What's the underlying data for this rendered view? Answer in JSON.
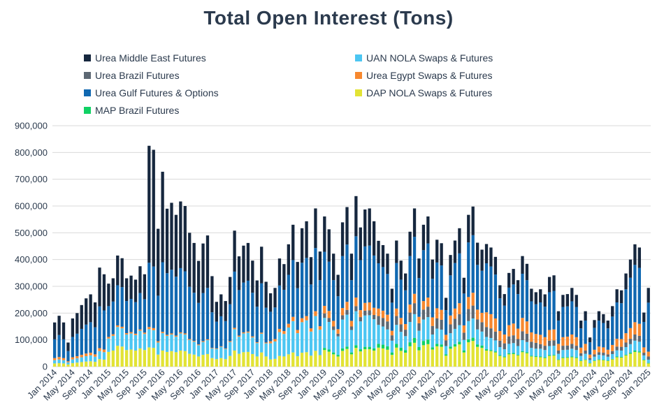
{
  "header": {
    "title": "Total Open Interest (Tons)"
  },
  "colors": {
    "background": "#ffffff",
    "text": "#2b3a4d",
    "grid": "#d9d9d9",
    "urea_middle_east": "#16273e",
    "uan_nola": "#4cc6f2",
    "urea_brazil": "#5d6873",
    "urea_egypt": "#f7882f",
    "urea_gulf": "#1068b1",
    "dap_nola": "#e2e335",
    "map_brazil": "#10d164"
  },
  "legend": {
    "items": [
      {
        "label": "Urea Middle East Futures",
        "color": "#16273e"
      },
      {
        "label": "UAN NOLA Swaps & Futures",
        "color": "#4cc6f2"
      },
      {
        "label": "Urea Brazil Futures",
        "color": "#5d6873"
      },
      {
        "label": "Urea Egypt Swaps & Futures",
        "color": "#f7882f"
      },
      {
        "label": "Urea Gulf Futures & Options",
        "color": "#1068b1"
      },
      {
        "label": "DAP NOLA Swaps & Futures",
        "color": "#e2e335"
      },
      {
        "label": "MAP Brazil Futures",
        "color": "#10d164"
      }
    ]
  },
  "chart_data": {
    "type": "bar",
    "variant": "stacked",
    "title": "Total Open Interest (Tons)",
    "unit": "tons",
    "values_scale": 1000,
    "x_span": "Jan 2014 - Jan 2025",
    "n_bars": 133,
    "x_tick_every": 4,
    "x_tick_labels": [
      "Jan 2014",
      "May 2014",
      "Sep 2014",
      "Jan 2015",
      "May 2015",
      "Sep 2015",
      "Jan 2016",
      "May 2016",
      "Sep 2016",
      "Jan 2017",
      "May 2017",
      "Sep 2017",
      "Jan 2018",
      "May 2018",
      "Sep 2018",
      "Jan 2019",
      "May 2019",
      "Sep 2019",
      "Jan 2020",
      "May 2020",
      "Sep 2020",
      "Jan 2021",
      "May 2021",
      "Sep 2021",
      "Jan 2022",
      "May 2022",
      "Sep 2022",
      "Jan 2023",
      "May 2023",
      "Sep 2023",
      "Jan 2024",
      "May 2024",
      "Sep 2024",
      "Jan 2025"
    ],
    "y_ticks": [
      "0",
      "100,000",
      "200,000",
      "300,000",
      "400,000",
      "500,000",
      "600,000",
      "700,000",
      "800,000",
      "900,000"
    ],
    "ylim": [
      0,
      900000
    ],
    "grid": true,
    "legend_position": "top",
    "series": [
      {
        "name": "DAP NOLA Swaps & Futures",
        "color": "#e2e335",
        "values": [
          12,
          13,
          12,
          8,
          13,
          15,
          17,
          19,
          20,
          18,
          28,
          26,
          55,
          60,
          78,
          75,
          62,
          64,
          60,
          68,
          62,
          72,
          70,
          45,
          60,
          55,
          58,
          54,
          60,
          58,
          48,
          45,
          38,
          44,
          47,
          32,
          28,
          32,
          28,
          40,
          60,
          48,
          54,
          55,
          47,
          38,
          53,
          38,
          27,
          29,
          40,
          38,
          46,
          53,
          39,
          52,
          54,
          41,
          59,
          43,
          62,
          56,
          46,
          38,
          59,
          66,
          46,
          70,
          57,
          65,
          65,
          60,
          71,
          68,
          63,
          44,
          71,
          59,
          52,
          76,
          89,
          61,
          80,
          84,
          64,
          76,
          74,
          41,
          67,
          75,
          83,
          53,
          91,
          96,
          74,
          70,
          60,
          58,
          53,
          40,
          35,
          46,
          47,
          42,
          54,
          50,
          38,
          36,
          35,
          32,
          40,
          41,
          25,
          32,
          33,
          35,
          32,
          21,
          25,
          13,
          21,
          25,
          24,
          21,
          27,
          35,
          34,
          42,
          48,
          55,
          53,
          24,
          12
        ]
      },
      {
        "name": "MAP Brazil Futures",
        "color": "#10d164",
        "values": [
          0,
          0,
          0,
          0,
          0,
          0,
          0,
          0,
          0,
          0,
          0,
          0,
          0,
          0,
          0,
          0,
          0,
          0,
          0,
          0,
          0,
          0,
          0,
          0,
          0,
          0,
          0,
          0,
          0,
          0,
          0,
          0,
          0,
          0,
          0,
          0,
          0,
          0,
          0,
          0,
          0,
          0,
          0,
          0,
          0,
          0,
          0,
          0,
          0,
          0,
          0,
          0,
          0,
          0,
          0,
          0,
          0,
          0,
          0,
          0,
          8,
          8,
          7,
          6,
          9,
          9,
          7,
          10,
          8,
          9,
          9,
          8,
          14,
          14,
          13,
          9,
          14,
          12,
          10,
          15,
          18,
          12,
          16,
          17,
          8,
          9,
          9,
          5,
          8,
          9,
          10,
          7,
          11,
          12,
          9,
          9,
          5,
          4,
          4,
          3,
          3,
          4,
          4,
          3,
          4,
          4,
          3,
          3,
          3,
          3,
          3,
          3,
          2,
          3,
          3,
          3,
          3,
          2,
          2,
          1,
          2,
          2,
          2,
          2,
          2,
          3,
          3,
          3,
          4,
          5,
          4,
          2,
          2
        ]
      },
      {
        "name": "UAN NOLA Swaps & Futures",
        "color": "#4cc6f2",
        "values": [
          12,
          14,
          12,
          8,
          14,
          16,
          18,
          20,
          22,
          19,
          30,
          28,
          50,
          55,
          70,
          68,
          58,
          60,
          58,
          66,
          60,
          68,
          66,
          45,
          65,
          60,
          62,
          58,
          64,
          62,
          52,
          48,
          42,
          48,
          52,
          36,
          38,
          42,
          38,
          52,
          80,
          64,
          70,
          72,
          62,
          50,
          70,
          49,
          60,
          65,
          89,
          84,
          100,
          117,
          86,
          114,
          119,
          90,
          130,
          95,
          112,
          103,
          84,
          69,
          108,
          119,
          84,
          127,
          104,
          117,
          118,
          109,
          71,
          68,
          63,
          44,
          71,
          59,
          52,
          76,
          89,
          61,
          80,
          84,
          48,
          57,
          55,
          31,
          50,
          57,
          62,
          40,
          68,
          72,
          56,
          52,
          46,
          45,
          41,
          30,
          27,
          35,
          37,
          32,
          41,
          38,
          29,
          28,
          29,
          27,
          34,
          34,
          21,
          27,
          27,
          29,
          27,
          17,
          21,
          11,
          14,
          17,
          16,
          14,
          18,
          23,
          23,
          28,
          32,
          37,
          36,
          16,
          12
        ]
      },
      {
        "name": "Urea Brazil Futures",
        "color": "#5d6873",
        "values": [
          0,
          0,
          0,
          0,
          0,
          0,
          0,
          0,
          0,
          0,
          0,
          0,
          0,
          0,
          0,
          0,
          0,
          0,
          0,
          0,
          0,
          0,
          0,
          0,
          0,
          0,
          0,
          0,
          0,
          0,
          0,
          0,
          0,
          0,
          0,
          0,
          0,
          0,
          0,
          0,
          0,
          0,
          0,
          0,
          0,
          0,
          0,
          0,
          0,
          0,
          0,
          0,
          0,
          0,
          0,
          0,
          0,
          0,
          0,
          0,
          17,
          15,
          13,
          10,
          16,
          18,
          13,
          19,
          16,
          18,
          18,
          16,
          33,
          32,
          30,
          20,
          33,
          28,
          24,
          35,
          41,
          28,
          37,
          39,
          32,
          38,
          37,
          21,
          33,
          38,
          41,
          27,
          45,
          48,
          37,
          35,
          37,
          36,
          33,
          24,
          22,
          28,
          29,
          26,
          33,
          31,
          23,
          22,
          17,
          16,
          20,
          20,
          12,
          16,
          16,
          18,
          16,
          10,
          12,
          7,
          9,
          10,
          10,
          9,
          11,
          14,
          14,
          17,
          20,
          23,
          22,
          10,
          12
        ]
      },
      {
        "name": "Urea Egypt Swaps & Futures",
        "color": "#f7882f",
        "values": [
          8,
          9,
          8,
          4,
          8,
          8,
          9,
          10,
          10,
          9,
          11,
          10,
          6,
          6,
          6,
          6,
          5,
          5,
          5,
          5,
          5,
          8,
          8,
          5,
          5,
          4,
          4,
          4,
          4,
          4,
          3,
          3,
          3,
          3,
          3,
          2,
          2,
          2,
          2,
          3,
          5,
          4,
          4,
          4,
          4,
          3,
          4,
          3,
          8,
          9,
          12,
          11,
          14,
          16,
          12,
          15,
          16,
          12,
          18,
          13,
          28,
          26,
          21,
          17,
          27,
          30,
          21,
          32,
          26,
          29,
          30,
          27,
          28,
          27,
          25,
          17,
          28,
          24,
          21,
          30,
          35,
          24,
          32,
          34,
          32,
          38,
          37,
          21,
          33,
          38,
          41,
          27,
          45,
          48,
          37,
          35,
          55,
          53,
          49,
          36,
          33,
          42,
          44,
          39,
          50,
          46,
          35,
          33,
          35,
          32,
          40,
          41,
          25,
          32,
          33,
          35,
          32,
          21,
          25,
          13,
          17,
          21,
          20,
          17,
          23,
          29,
          29,
          35,
          40,
          46,
          45,
          20,
          18
        ]
      },
      {
        "name": "Urea Gulf Futures & Options",
        "color": "#1068b1",
        "values": [
          70,
          82,
          70,
          38,
          76,
          84,
          97,
          108,
          114,
          101,
          156,
          146,
          115,
          122,
          150,
          148,
          120,
          124,
          118,
          136,
          125,
          240,
          230,
          170,
          260,
          230,
          238,
          220,
          240,
          232,
          195,
          180,
          155,
          180,
          192,
          133,
          100,
          112,
          102,
          138,
          210,
          170,
          186,
          190,
          163,
          133,
          184,
          130,
          110,
          118,
          162,
          154,
          183,
          212,
          156,
          207,
          217,
          164,
          236,
          172,
          202,
          184,
          152,
          123,
          194,
          214,
          152,
          229,
          187,
          211,
          212,
          195,
          169,
          163,
          152,
          105,
          170,
          143,
          126,
          181,
          213,
          145,
          190,
          202,
          144,
          171,
          166,
          92,
          150,
          170,
          186,
          119,
          204,
          215,
          167,
          157,
          183,
          178,
          164,
          122,
          108,
          140,
          146,
          129,
          165,
          154,
          116,
          111,
          121,
          114,
          141,
          144,
          87,
          113,
          113,
          124,
          113,
          72,
          87,
          46,
          82,
          97,
          91,
          80,
          106,
          136,
          134,
          164,
          188,
          214,
          209,
          95,
          183
        ]
      },
      {
        "name": "Urea Middle East Futures",
        "color": "#16273e",
        "values": [
          63,
          72,
          63,
          32,
          69,
          77,
          89,
          98,
          104,
          93,
          145,
          135,
          84,
          87,
          111,
          108,
          85,
          87,
          84,
          100,
          93,
          437,
          436,
          250,
          338,
          241,
          250,
          231,
          249,
          244,
          202,
          186,
          157,
          185,
          196,
          135,
          74,
          82,
          75,
          102,
          153,
          126,
          138,
          141,
          120,
          98,
          137,
          97,
          69,
          73,
          101,
          96,
          114,
          132,
          98,
          129,
          137,
          102,
          148,
          107,
          132,
          121,
          99,
          80,
          126,
          140,
          99,
          150,
          122,
          138,
          139,
          128,
          84,
          82,
          76,
          52,
          84,
          71,
          63,
          91,
          106,
          73,
          95,
          101,
          72,
          85,
          83,
          46,
          76,
          84,
          94,
          59,
          103,
          107,
          83,
          79,
          72,
          71,
          66,
          49,
          43,
          55,
          58,
          52,
          66,
          61,
          47,
          45,
          49,
          46,
          57,
          58,
          35,
          45,
          46,
          50,
          45,
          29,
          35,
          18,
          29,
          35,
          33,
          29,
          39,
          49,
          48,
          59,
          68,
          77,
          76,
          35,
          55
        ]
      }
    ]
  }
}
